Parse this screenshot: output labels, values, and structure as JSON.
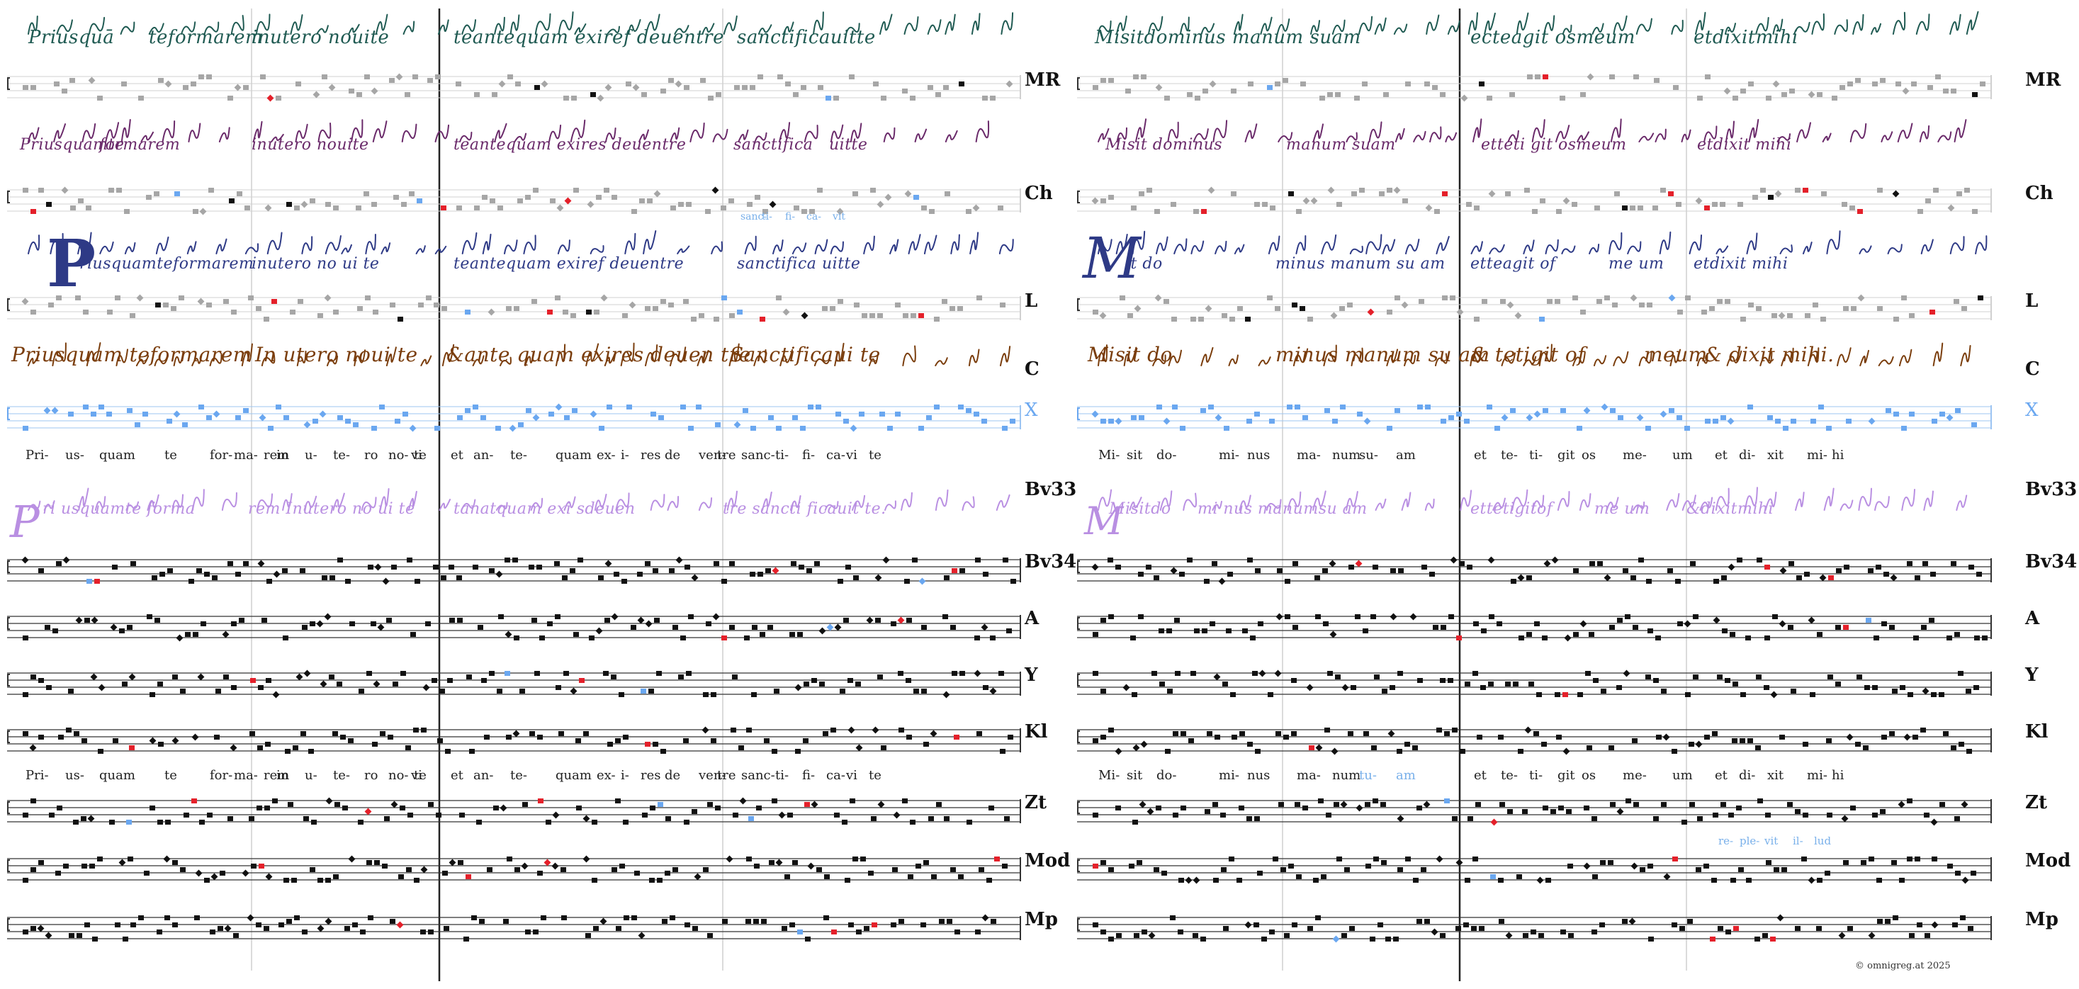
{
  "colors": {
    "ink": "#111111",
    "gray_note": "#a6a6a6",
    "blue_note": "#6aa7f0",
    "red_note": "#e4202a",
    "green_note": "#4f8f4f",
    "mr_script": "#1f5a52",
    "ch_script": "#6a2a6a",
    "l_script": "#2e3a86",
    "c_script": "#7a3d0c",
    "bv33_script": "#b98fe2"
  },
  "labels": {
    "mr": "MR",
    "ch": "Ch",
    "l": "L",
    "c": "C",
    "x": "X",
    "bv33": "Bv33",
    "bv34": "Bv34",
    "a": "A",
    "y": "Y",
    "kl": "Kl",
    "zt": "Zt",
    "mod": "Mod",
    "mp": "Mp"
  },
  "manuscript_text": {
    "mr": [
      "Priusquā",
      "teformarem",
      "inutero nouite",
      "teantequam exiref deuentre",
      "sanctificauitte",
      "Misitdominus manum suam",
      "ecteagit osmeum",
      "etdixitmihi"
    ],
    "ch": [
      "Priusquamte",
      "formarem",
      "inutero nouite",
      "teantequam exires deuentre",
      "sanctifica",
      "uitte",
      "Misit dominus",
      "manum suam",
      "etteti git osmeum",
      "etdixit mihi"
    ],
    "l_initial": "P",
    "l": [
      "riusquamteformarem",
      "inutero no ui te",
      "teantequam exiref deuentre",
      "sanctifica",
      "uitte",
      "it do",
      "minus manum su am",
      "etteagit of",
      "me um",
      "etdixit mihi"
    ],
    "l_initial_right": "M",
    "c": [
      "Priusquam teformarem",
      "In utero noui te",
      "&ante quam exires deuen tre",
      "Sanctificaui te",
      "Misit do",
      "minus manum su am",
      "& tetigit of",
      "meum",
      "& dixit mihi."
    ],
    "bv33_initial": "P",
    "bv33": [
      "ri usquamte forma",
      "rem Inutero no ui te",
      "tanatquam exi sdeuen",
      "tre sancti ficauit te.",
      "Misitdo",
      "mi nus manumsu am",
      "ettetigitof",
      "me um",
      "&dixitmihi"
    ],
    "bv33_initial_right": "M"
  },
  "syllables": {
    "x": [
      "Pri-",
      "us-",
      "quam",
      "te",
      "for-",
      "ma-",
      "rem",
      "in",
      "u-",
      "te-",
      "ro",
      "no-",
      "vi",
      "te",
      "et",
      "an-",
      "te-",
      "quam",
      "ex-",
      "i-",
      "res",
      "de",
      "ven-",
      "tre",
      "sanc-",
      "ti-",
      "fi-",
      "ca-",
      "vi",
      "te",
      "Mi-",
      "sit",
      "do-",
      "mi-",
      "nus",
      "ma-",
      "num",
      "su-",
      "am",
      "et",
      "te-",
      "ti-",
      "git",
      "os",
      "me-",
      "um",
      "et",
      "di-",
      "xit",
      "mi-",
      "hi"
    ],
    "kl": [
      "Pri-",
      "us-",
      "quam",
      "te",
      "for-",
      "ma-",
      "rem",
      "in",
      "u-",
      "te-",
      "ro",
      "no-",
      "vi",
      "te",
      "et",
      "an-",
      "te-",
      "quam",
      "ex-",
      "i-",
      "res",
      "de",
      "ven-",
      "tre",
      "sanc-",
      "ti-",
      "fi-",
      "ca-",
      "vi",
      "te",
      "Mi-",
      "sit",
      "do-",
      "mi-",
      "nus",
      "ma-",
      "num",
      "tu-",
      "am",
      "et",
      "te-",
      "ti-",
      "git",
      "os",
      "me-",
      "um",
      "et",
      "di-",
      "xit",
      "mi-",
      "hi"
    ],
    "ch_variant": [
      "sanc-",
      "ti-",
      "fi-",
      "ca-",
      "vit"
    ],
    "zt_variant": [
      "re-",
      "ple-",
      "vit",
      "il-",
      "lud"
    ]
  },
  "copyright": "©  omnigreg.at     2025"
}
